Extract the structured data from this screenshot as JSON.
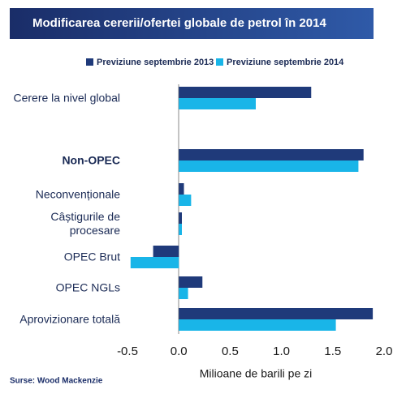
{
  "chart_data": {
    "type": "barh",
    "title": "Modificarea cererii/ofertei globale de petrol în 2014",
    "categories": [
      "Cerere la nivel global",
      "Non-OPEC",
      "Neconvenționale",
      "Câștigurile de procesare",
      "OPEC Brut",
      "OPEC NGLs",
      "Aprovizionare totală"
    ],
    "series": [
      {
        "name": "Previziune septembrie 2013",
        "color": "#1f3a7a",
        "values": [
          1.29,
          1.8,
          0.05,
          0.03,
          -0.25,
          0.23,
          1.89
        ]
      },
      {
        "name": "Previziune septembrie 2014",
        "color": "#19b5e8",
        "values": [
          0.75,
          1.75,
          0.12,
          0.03,
          -0.47,
          0.09,
          1.53
        ]
      }
    ],
    "xlim": [
      -0.5,
      2.0
    ],
    "xticks": [
      -0.5,
      {
        "value": 0,
        "label": "0.0"
      },
      0.5,
      {
        "value": 1,
        "label": "1.0"
      },
      1.5,
      {
        "value": 2,
        "label": "2.0"
      }
    ],
    "xlabel": "Milioane de barili pe zi",
    "source": "Surse: Wood Mackenzie",
    "legend": "top"
  }
}
